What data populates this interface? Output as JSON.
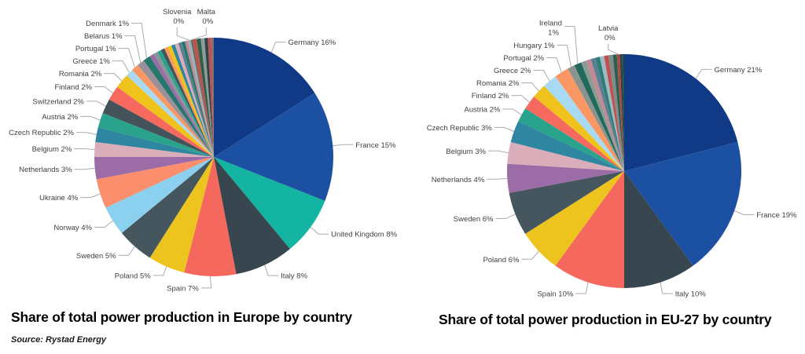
{
  "source_note": "Source: Rystad Energy",
  "colors": {
    "background": "#ffffff",
    "label_text": "#3f3f3f",
    "leader_line": "#ababab",
    "title_text": "#000000"
  },
  "chart_data": [
    {
      "type": "pie",
      "title": "Share of total power production in Europe by country",
      "slices": [
        {
          "name": "Germany",
          "pct": "16%",
          "value": 16,
          "color": "#103a85",
          "labeled": true
        },
        {
          "name": "France",
          "pct": "15%",
          "value": 15,
          "color": "#1c50a2",
          "labeled": true
        },
        {
          "name": "United Kingdom",
          "pct": "8%",
          "value": 8,
          "color": "#14b4a2",
          "labeled": true
        },
        {
          "name": "Italy",
          "pct": "8%",
          "value": 8,
          "color": "#38474f",
          "labeled": true
        },
        {
          "name": "Spain",
          "pct": "7%",
          "value": 7,
          "color": "#f5685e",
          "labeled": true
        },
        {
          "name": "Poland",
          "pct": "5%",
          "value": 5,
          "color": "#edc41d",
          "labeled": true
        },
        {
          "name": "Sweden",
          "pct": "5%",
          "value": 5,
          "color": "#46565e",
          "labeled": true
        },
        {
          "name": "Norway",
          "pct": "4%",
          "value": 4,
          "color": "#8bd0ef",
          "labeled": true
        },
        {
          "name": "Ukraine",
          "pct": "4%",
          "value": 4,
          "color": "#fb8e6c",
          "labeled": true
        },
        {
          "name": "Netherlands",
          "pct": "3%",
          "value": 3,
          "color": "#9c6ca6",
          "labeled": true
        },
        {
          "name": "Belgium",
          "pct": "2%",
          "value": 2,
          "color": "#d9aeba",
          "labeled": true
        },
        {
          "name": "Czech Republic",
          "pct": "2%",
          "value": 2,
          "color": "#2e86a0",
          "labeled": true
        },
        {
          "name": "Austria",
          "pct": "2%",
          "value": 2,
          "color": "#2aa38c",
          "labeled": true
        },
        {
          "name": "Switzerland",
          "pct": "2%",
          "value": 2,
          "color": "#44525a",
          "labeled": true
        },
        {
          "name": "Finland",
          "pct": "2%",
          "value": 2,
          "color": "#f5695e",
          "labeled": true
        },
        {
          "name": "Romania",
          "pct": "2%",
          "value": 2,
          "color": "#efc31c",
          "labeled": true
        },
        {
          "name": "Greece",
          "pct": "1%",
          "value": 1,
          "color": "#a8dbf3",
          "labeled": true
        },
        {
          "name": "Portugal",
          "pct": "1%",
          "value": 1,
          "color": "#fa9763",
          "labeled": true
        },
        {
          "name": "Belarus",
          "pct": "1%",
          "value": 1,
          "color": "#99909a",
          "labeled": true
        },
        {
          "name": "Denmark",
          "pct": "1%",
          "value": 1,
          "color": "#26776c",
          "labeled": true
        },
        {
          "name": "",
          "pct": "",
          "value": 0.6,
          "color": "#9c6ca6",
          "labeled": false
        },
        {
          "name": "",
          "pct": "",
          "value": 0.55,
          "color": "#8a9599",
          "labeled": false
        },
        {
          "name": "",
          "pct": "",
          "value": 0.55,
          "color": "#2aa38c",
          "labeled": false
        },
        {
          "name": "",
          "pct": "",
          "value": 0.5,
          "color": "#44545c",
          "labeled": false
        },
        {
          "name": "",
          "pct": "",
          "value": 0.5,
          "color": "#fa9d5a",
          "labeled": false
        },
        {
          "name": "",
          "pct": "",
          "value": 0.5,
          "color": "#eec41b",
          "labeled": false
        },
        {
          "name": "",
          "pct": "",
          "value": 0.5,
          "color": "#2e86a0",
          "labeled": false
        },
        {
          "name": "",
          "pct": "",
          "value": 0.5,
          "color": "#d9aeba",
          "labeled": false
        },
        {
          "name": "",
          "pct": "",
          "value": 0.45,
          "color": "#5b7f95",
          "labeled": false
        },
        {
          "name": "",
          "pct": "",
          "value": 0.45,
          "color": "#26776c",
          "labeled": false
        },
        {
          "name": "",
          "pct": "",
          "value": 0.4,
          "color": "#c48a94",
          "labeled": false
        },
        {
          "name": "Slovenia",
          "pct": "0%",
          "value": 0.4,
          "color": "#9fb0bc",
          "labeled": true,
          "two_line": true
        },
        {
          "name": "Malta",
          "pct": "0%",
          "value": 0.2,
          "color": "#53645c",
          "labeled": true,
          "two_line": true
        },
        {
          "name": "",
          "pct": "",
          "value": 0.6,
          "color": "#b8554a",
          "labeled": false
        },
        {
          "name": "",
          "pct": "",
          "value": 0.55,
          "color": "#2e5e4e",
          "labeled": false
        },
        {
          "name": "",
          "pct": "",
          "value": 0.5,
          "color": "#8c9b94",
          "labeled": false
        },
        {
          "name": "",
          "pct": "",
          "value": 0.45,
          "color": "#30414b",
          "labeled": false
        },
        {
          "name": "",
          "pct": "",
          "value": 0.45,
          "color": "#c0504d",
          "labeled": false
        },
        {
          "name": "",
          "pct": "",
          "value": 0.35,
          "color": "#826f6b",
          "labeled": false
        }
      ]
    },
    {
      "type": "pie",
      "title": "Share of total power production in EU-27 by country",
      "slices": [
        {
          "name": "Germany",
          "pct": "21%",
          "value": 21,
          "color": "#103a85",
          "labeled": true
        },
        {
          "name": "France",
          "pct": "19%",
          "value": 19,
          "color": "#1c50a2",
          "labeled": true
        },
        {
          "name": "Italy",
          "pct": "10%",
          "value": 10,
          "color": "#38474f",
          "labeled": true
        },
        {
          "name": "Spain",
          "pct": "10%",
          "value": 10,
          "color": "#f5685e",
          "labeled": true
        },
        {
          "name": "Poland",
          "pct": "6%",
          "value": 6,
          "color": "#edc41d",
          "labeled": true
        },
        {
          "name": "Sweden",
          "pct": "6%",
          "value": 6,
          "color": "#46565e",
          "labeled": true
        },
        {
          "name": "Netherlands",
          "pct": "4%",
          "value": 4,
          "color": "#9c6ca6",
          "labeled": true
        },
        {
          "name": "Belgium",
          "pct": "3%",
          "value": 3,
          "color": "#d9aeba",
          "labeled": true
        },
        {
          "name": "Czech Republic",
          "pct": "3%",
          "value": 3,
          "color": "#2e86a0",
          "labeled": true
        },
        {
          "name": "Austria",
          "pct": "2%",
          "value": 2,
          "color": "#2aa38c",
          "labeled": true
        },
        {
          "name": "Finland",
          "pct": "2%",
          "value": 2,
          "color": "#f5695e",
          "labeled": true
        },
        {
          "name": "Romania",
          "pct": "2%",
          "value": 2,
          "color": "#efc31c",
          "labeled": true
        },
        {
          "name": "Greece",
          "pct": "2%",
          "value": 2,
          "color": "#a8dbf3",
          "labeled": true
        },
        {
          "name": "Portugal",
          "pct": "2%",
          "value": 2,
          "color": "#fa9763",
          "labeled": true
        },
        {
          "name": "Hungary",
          "pct": "1%",
          "value": 1,
          "color": "#8a938e",
          "labeled": true
        },
        {
          "name": "Ireland",
          "pct": "1%",
          "value": 1,
          "color": "#20695c",
          "labeled": true,
          "two_line": true
        },
        {
          "name": "",
          "pct": "",
          "value": 0.7,
          "color": "#8c9b94",
          "labeled": false
        },
        {
          "name": "",
          "pct": "",
          "value": 0.7,
          "color": "#c48a94",
          "labeled": false
        },
        {
          "name": "",
          "pct": "",
          "value": 0.65,
          "color": "#5b7f95",
          "labeled": false
        },
        {
          "name": "",
          "pct": "",
          "value": 0.6,
          "color": "#2a7f72",
          "labeled": false
        },
        {
          "name": "",
          "pct": "",
          "value": 0.6,
          "color": "#9fb8c4",
          "labeled": false
        },
        {
          "name": "",
          "pct": "",
          "value": 0.6,
          "color": "#c0504d",
          "labeled": false
        },
        {
          "name": "",
          "pct": "",
          "value": 0.6,
          "color": "#7f8c8d",
          "labeled": false
        },
        {
          "name": "",
          "pct": "",
          "value": 0.55,
          "color": "#2e5e4e",
          "labeled": false
        },
        {
          "name": "Latvia",
          "pct": "0%",
          "value": 0.4,
          "color": "#ae4a3f",
          "labeled": true,
          "two_line": true
        },
        {
          "name": "",
          "pct": "",
          "value": 0.35,
          "color": "#30414b",
          "labeled": false
        },
        {
          "name": "",
          "pct": "",
          "value": 0.25,
          "color": "#1f4e46",
          "labeled": false
        }
      ]
    }
  ]
}
